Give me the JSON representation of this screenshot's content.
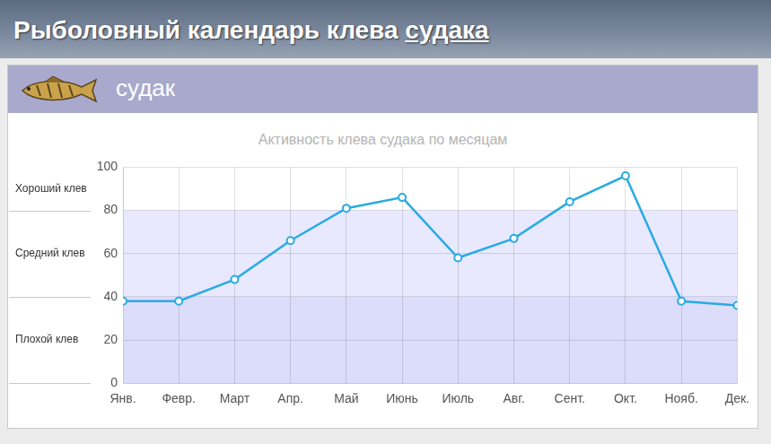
{
  "header": {
    "title": "Рыболовный календарь клева",
    "link": "судака"
  },
  "panel": {
    "name": "судак"
  },
  "chart_data": {
    "type": "line",
    "title": "Активность клева судака по месяцам",
    "categories": [
      "Янв.",
      "Февр.",
      "Март",
      "Апр.",
      "Май",
      "Июнь",
      "Июль",
      "Авг.",
      "Сент.",
      "Окт.",
      "Нояб.",
      "Дек."
    ],
    "values": [
      38,
      38,
      48,
      66,
      81,
      86,
      58,
      67,
      84,
      96,
      38,
      36
    ],
    "color": "#29abe2",
    "marker": "circle",
    "ylim": [
      0,
      100
    ],
    "yticks": [
      0,
      20,
      40,
      60,
      80,
      100
    ],
    "grid": true,
    "bands": [
      {
        "label": "Хороший клев",
        "from": 80,
        "to": 100
      },
      {
        "label": "Средний клев",
        "from": 40,
        "to": 80
      },
      {
        "label": "Плохой клев",
        "from": 0,
        "to": 40
      }
    ]
  }
}
